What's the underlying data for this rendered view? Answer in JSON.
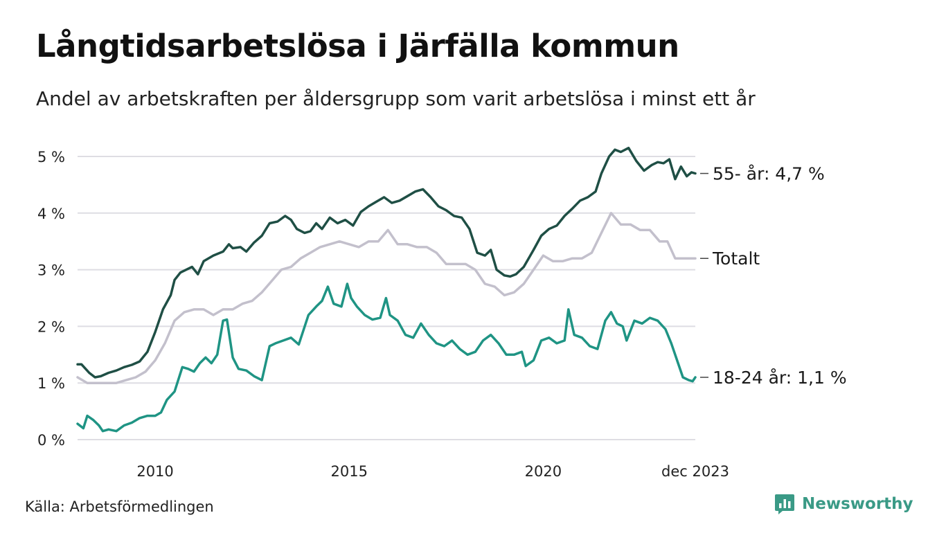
{
  "title": "Långtidsarbetslösa i Järfälla kommun",
  "subtitle": "Andel av arbetskraften per åldersgrupp som varit arbetslösa i minst ett år",
  "source": "Källa: Arbetsförmedlingen",
  "brand": {
    "name": "Newsworthy",
    "icon": "newsworthy-logo-icon",
    "color": "#3a9a86"
  },
  "chart_data": {
    "type": "line",
    "title": "Långtidsarbetslösa i Järfälla kommun",
    "ylabel": "",
    "xlabel": "",
    "ylim": [
      0,
      5
    ],
    "x_range": [
      2008.0,
      2023.92
    ],
    "yticks": [
      0,
      1,
      2,
      3,
      4,
      5
    ],
    "ytick_labels": [
      "0 %",
      "1 %",
      "2 %",
      "3 %",
      "4 %",
      "5 %"
    ],
    "xticks": [
      2010,
      2015,
      2020,
      2023.92
    ],
    "xtick_labels": [
      "2010",
      "2015",
      "2020",
      "dec 2023"
    ],
    "grid": true,
    "series": [
      {
        "name": "55- år",
        "label": "55- år: 4,7 %",
        "color": "#1f4f45",
        "points": [
          [
            2008.0,
            1.33
          ],
          [
            2008.1,
            1.33
          ],
          [
            2008.3,
            1.18
          ],
          [
            2008.45,
            1.1
          ],
          [
            2008.6,
            1.12
          ],
          [
            2008.8,
            1.18
          ],
          [
            2009.0,
            1.22
          ],
          [
            2009.2,
            1.28
          ],
          [
            2009.4,
            1.32
          ],
          [
            2009.6,
            1.38
          ],
          [
            2009.8,
            1.55
          ],
          [
            2010.0,
            1.9
          ],
          [
            2010.2,
            2.3
          ],
          [
            2010.4,
            2.55
          ],
          [
            2010.5,
            2.82
          ],
          [
            2010.65,
            2.95
          ],
          [
            2010.8,
            3.0
          ],
          [
            2010.95,
            3.05
          ],
          [
            2011.1,
            2.92
          ],
          [
            2011.25,
            3.15
          ],
          [
            2011.5,
            3.25
          ],
          [
            2011.75,
            3.32
          ],
          [
            2011.9,
            3.45
          ],
          [
            2012.0,
            3.38
          ],
          [
            2012.2,
            3.4
          ],
          [
            2012.35,
            3.32
          ],
          [
            2012.55,
            3.48
          ],
          [
            2012.75,
            3.6
          ],
          [
            2012.95,
            3.82
          ],
          [
            2013.15,
            3.85
          ],
          [
            2013.35,
            3.95
          ],
          [
            2013.5,
            3.88
          ],
          [
            2013.65,
            3.72
          ],
          [
            2013.85,
            3.65
          ],
          [
            2014.0,
            3.68
          ],
          [
            2014.15,
            3.82
          ],
          [
            2014.3,
            3.72
          ],
          [
            2014.5,
            3.92
          ],
          [
            2014.7,
            3.82
          ],
          [
            2014.9,
            3.88
          ],
          [
            2015.1,
            3.78
          ],
          [
            2015.3,
            4.02
          ],
          [
            2015.5,
            4.12
          ],
          [
            2015.7,
            4.2
          ],
          [
            2015.9,
            4.28
          ],
          [
            2016.1,
            4.18
          ],
          [
            2016.3,
            4.22
          ],
          [
            2016.5,
            4.3
          ],
          [
            2016.7,
            4.38
          ],
          [
            2016.9,
            4.42
          ],
          [
            2017.1,
            4.28
          ],
          [
            2017.3,
            4.12
          ],
          [
            2017.5,
            4.05
          ],
          [
            2017.7,
            3.95
          ],
          [
            2017.9,
            3.92
          ],
          [
            2018.1,
            3.72
          ],
          [
            2018.3,
            3.3
          ],
          [
            2018.5,
            3.25
          ],
          [
            2018.65,
            3.35
          ],
          [
            2018.8,
            3.0
          ],
          [
            2019.0,
            2.9
          ],
          [
            2019.15,
            2.88
          ],
          [
            2019.3,
            2.92
          ],
          [
            2019.5,
            3.05
          ],
          [
            2019.75,
            3.35
          ],
          [
            2019.95,
            3.6
          ],
          [
            2020.15,
            3.72
          ],
          [
            2020.35,
            3.78
          ],
          [
            2020.55,
            3.95
          ],
          [
            2020.75,
            4.08
          ],
          [
            2020.95,
            4.22
          ],
          [
            2021.15,
            4.28
          ],
          [
            2021.35,
            4.38
          ],
          [
            2021.5,
            4.7
          ],
          [
            2021.7,
            5.0
          ],
          [
            2021.85,
            5.12
          ],
          [
            2022.0,
            5.08
          ],
          [
            2022.2,
            5.15
          ],
          [
            2022.4,
            4.92
          ],
          [
            2022.6,
            4.75
          ],
          [
            2022.8,
            4.85
          ],
          [
            2022.95,
            4.9
          ],
          [
            2023.1,
            4.88
          ],
          [
            2023.25,
            4.95
          ],
          [
            2023.4,
            4.6
          ],
          [
            2023.55,
            4.82
          ],
          [
            2023.7,
            4.65
          ],
          [
            2023.82,
            4.72
          ],
          [
            2023.92,
            4.7
          ]
        ]
      },
      {
        "name": "Totalt",
        "label": "Totalt",
        "color": "#c3c0cc",
        "points": [
          [
            2008.0,
            1.1
          ],
          [
            2008.25,
            1.0
          ],
          [
            2008.5,
            1.0
          ],
          [
            2008.75,
            1.0
          ],
          [
            2009.0,
            1.0
          ],
          [
            2009.25,
            1.05
          ],
          [
            2009.5,
            1.1
          ],
          [
            2009.75,
            1.2
          ],
          [
            2010.0,
            1.4
          ],
          [
            2010.25,
            1.7
          ],
          [
            2010.5,
            2.1
          ],
          [
            2010.75,
            2.25
          ],
          [
            2011.0,
            2.3
          ],
          [
            2011.25,
            2.3
          ],
          [
            2011.5,
            2.2
          ],
          [
            2011.75,
            2.3
          ],
          [
            2012.0,
            2.3
          ],
          [
            2012.25,
            2.4
          ],
          [
            2012.5,
            2.45
          ],
          [
            2012.75,
            2.6
          ],
          [
            2013.0,
            2.8
          ],
          [
            2013.25,
            3.0
          ],
          [
            2013.5,
            3.05
          ],
          [
            2013.75,
            3.2
          ],
          [
            2014.0,
            3.3
          ],
          [
            2014.25,
            3.4
          ],
          [
            2014.5,
            3.45
          ],
          [
            2014.75,
            3.5
          ],
          [
            2015.0,
            3.45
          ],
          [
            2015.25,
            3.4
          ],
          [
            2015.5,
            3.5
          ],
          [
            2015.75,
            3.5
          ],
          [
            2016.0,
            3.7
          ],
          [
            2016.25,
            3.45
          ],
          [
            2016.5,
            3.45
          ],
          [
            2016.75,
            3.4
          ],
          [
            2017.0,
            3.4
          ],
          [
            2017.25,
            3.3
          ],
          [
            2017.5,
            3.1
          ],
          [
            2017.75,
            3.1
          ],
          [
            2018.0,
            3.1
          ],
          [
            2018.25,
            3.0
          ],
          [
            2018.5,
            2.75
          ],
          [
            2018.75,
            2.7
          ],
          [
            2019.0,
            2.55
          ],
          [
            2019.25,
            2.6
          ],
          [
            2019.5,
            2.75
          ],
          [
            2019.75,
            3.0
          ],
          [
            2020.0,
            3.25
          ],
          [
            2020.25,
            3.15
          ],
          [
            2020.5,
            3.15
          ],
          [
            2020.75,
            3.2
          ],
          [
            2021.0,
            3.2
          ],
          [
            2021.25,
            3.3
          ],
          [
            2021.5,
            3.65
          ],
          [
            2021.75,
            4.0
          ],
          [
            2022.0,
            3.8
          ],
          [
            2022.25,
            3.8
          ],
          [
            2022.5,
            3.7
          ],
          [
            2022.75,
            3.7
          ],
          [
            2023.0,
            3.5
          ],
          [
            2023.2,
            3.5
          ],
          [
            2023.4,
            3.2
          ],
          [
            2023.6,
            3.2
          ],
          [
            2023.8,
            3.2
          ],
          [
            2023.92,
            3.2
          ]
        ]
      },
      {
        "name": "18-24 år",
        "label": "18-24 år: 1,1 %",
        "color": "#1f9484",
        "points": [
          [
            2008.0,
            0.28
          ],
          [
            2008.15,
            0.2
          ],
          [
            2008.25,
            0.42
          ],
          [
            2008.4,
            0.35
          ],
          [
            2008.55,
            0.25
          ],
          [
            2008.65,
            0.15
          ],
          [
            2008.8,
            0.18
          ],
          [
            2009.0,
            0.15
          ],
          [
            2009.2,
            0.25
          ],
          [
            2009.4,
            0.3
          ],
          [
            2009.6,
            0.38
          ],
          [
            2009.8,
            0.42
          ],
          [
            2010.0,
            0.42
          ],
          [
            2010.15,
            0.48
          ],
          [
            2010.3,
            0.7
          ],
          [
            2010.5,
            0.85
          ],
          [
            2010.7,
            1.28
          ],
          [
            2010.85,
            1.25
          ],
          [
            2011.0,
            1.2
          ],
          [
            2011.15,
            1.35
          ],
          [
            2011.3,
            1.45
          ],
          [
            2011.45,
            1.35
          ],
          [
            2011.6,
            1.5
          ],
          [
            2011.75,
            2.1
          ],
          [
            2011.85,
            2.12
          ],
          [
            2012.0,
            1.45
          ],
          [
            2012.15,
            1.25
          ],
          [
            2012.35,
            1.22
          ],
          [
            2012.55,
            1.12
          ],
          [
            2012.75,
            1.05
          ],
          [
            2012.95,
            1.65
          ],
          [
            2013.1,
            1.7
          ],
          [
            2013.3,
            1.75
          ],
          [
            2013.5,
            1.8
          ],
          [
            2013.7,
            1.68
          ],
          [
            2013.95,
            2.2
          ],
          [
            2014.15,
            2.35
          ],
          [
            2014.3,
            2.45
          ],
          [
            2014.45,
            2.7
          ],
          [
            2014.6,
            2.4
          ],
          [
            2014.8,
            2.35
          ],
          [
            2014.95,
            2.75
          ],
          [
            2015.05,
            2.5
          ],
          [
            2015.2,
            2.35
          ],
          [
            2015.4,
            2.2
          ],
          [
            2015.6,
            2.12
          ],
          [
            2015.8,
            2.15
          ],
          [
            2015.95,
            2.5
          ],
          [
            2016.05,
            2.2
          ],
          [
            2016.25,
            2.1
          ],
          [
            2016.45,
            1.85
          ],
          [
            2016.65,
            1.8
          ],
          [
            2016.85,
            2.05
          ],
          [
            2017.05,
            1.85
          ],
          [
            2017.25,
            1.7
          ],
          [
            2017.45,
            1.65
          ],
          [
            2017.65,
            1.75
          ],
          [
            2017.85,
            1.6
          ],
          [
            2018.05,
            1.5
          ],
          [
            2018.25,
            1.55
          ],
          [
            2018.45,
            1.75
          ],
          [
            2018.65,
            1.85
          ],
          [
            2018.85,
            1.7
          ],
          [
            2019.05,
            1.5
          ],
          [
            2019.25,
            1.5
          ],
          [
            2019.45,
            1.55
          ],
          [
            2019.55,
            1.3
          ],
          [
            2019.75,
            1.4
          ],
          [
            2019.95,
            1.75
          ],
          [
            2020.15,
            1.8
          ],
          [
            2020.35,
            1.7
          ],
          [
            2020.55,
            1.75
          ],
          [
            2020.65,
            2.3
          ],
          [
            2020.8,
            1.85
          ],
          [
            2021.0,
            1.8
          ],
          [
            2021.2,
            1.65
          ],
          [
            2021.4,
            1.6
          ],
          [
            2021.6,
            2.1
          ],
          [
            2021.75,
            2.25
          ],
          [
            2021.9,
            2.05
          ],
          [
            2022.05,
            2.0
          ],
          [
            2022.15,
            1.75
          ],
          [
            2022.35,
            2.1
          ],
          [
            2022.55,
            2.05
          ],
          [
            2022.75,
            2.15
          ],
          [
            2022.95,
            2.1
          ],
          [
            2023.15,
            1.95
          ],
          [
            2023.3,
            1.7
          ],
          [
            2023.45,
            1.4
          ],
          [
            2023.6,
            1.1
          ],
          [
            2023.75,
            1.05
          ],
          [
            2023.85,
            1.03
          ],
          [
            2023.92,
            1.1
          ]
        ]
      }
    ]
  }
}
